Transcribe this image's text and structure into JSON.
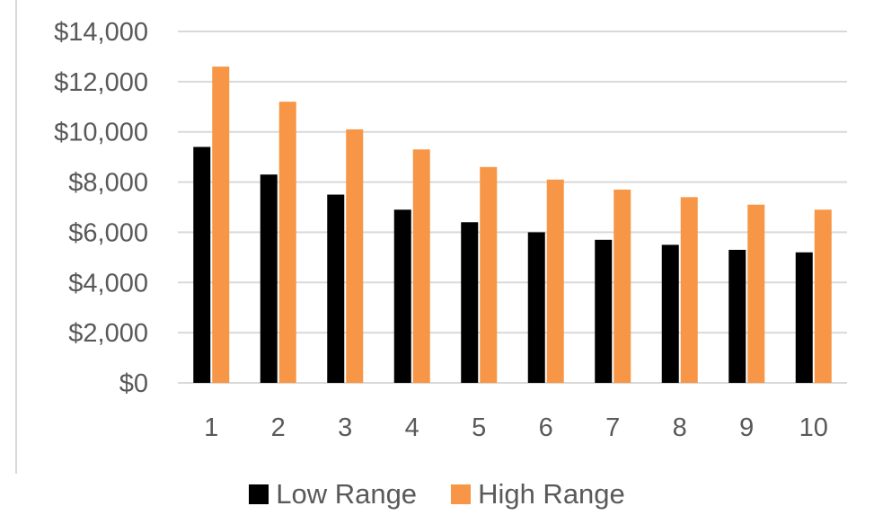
{
  "chart_data": {
    "type": "bar",
    "title": "",
    "xlabel": "",
    "ylabel": "",
    "categories": [
      "1",
      "2",
      "3",
      "4",
      "5",
      "6",
      "7",
      "8",
      "9",
      "10"
    ],
    "series": [
      {
        "name": "Low Range",
        "color": "#000000",
        "values": [
          9400,
          8300,
          7500,
          6900,
          6400,
          6000,
          5700,
          5500,
          5300,
          5200
        ]
      },
      {
        "name": "High Range",
        "color": "#F79646",
        "values": [
          12600,
          11200,
          10100,
          9300,
          8600,
          8100,
          7700,
          7400,
          7100,
          6900
        ]
      }
    ],
    "ylim": [
      0,
      14000
    ],
    "y_ticks": [
      "$0",
      "$2,000",
      "$4,000",
      "$6,000",
      "$8,000",
      "$10,000",
      "$12,000",
      "$14,000"
    ],
    "grid": true,
    "gridline_color": "#D9D9D9",
    "legend_position": "bottom"
  }
}
